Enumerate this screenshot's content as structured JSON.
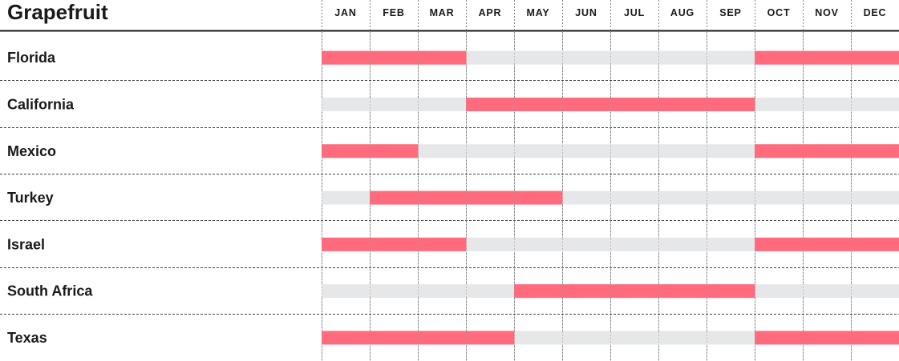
{
  "chart_data": {
    "type": "bar",
    "title": "Grapefruit",
    "months": [
      "JAN",
      "FEB",
      "MAR",
      "APR",
      "MAY",
      "JUN",
      "JUL",
      "AUG",
      "SEP",
      "OCT",
      "NOV",
      "DEC"
    ],
    "rows": [
      {
        "label": "Florida",
        "in_season_months": [
          1,
          2,
          3,
          10,
          11,
          12
        ]
      },
      {
        "label": "California",
        "in_season_months": [
          4,
          5,
          6,
          7,
          8,
          9
        ]
      },
      {
        "label": "Mexico",
        "in_season_months": [
          1,
          2,
          10,
          11,
          12
        ]
      },
      {
        "label": "Turkey",
        "in_season_months": [
          2,
          3,
          4,
          5
        ]
      },
      {
        "label": "Israel",
        "in_season_months": [
          1,
          2,
          3,
          10,
          11,
          12
        ]
      },
      {
        "label": "South Africa",
        "in_season_months": [
          5,
          6,
          7,
          8,
          9
        ]
      },
      {
        "label": "Texas",
        "in_season_months": [
          1,
          2,
          3,
          4,
          10,
          11,
          12
        ]
      }
    ],
    "colors": {
      "in_season": "#ff6b7d",
      "off_season": "#e6e7e8",
      "grid": "#888888",
      "text": "#1a1a1a"
    }
  }
}
